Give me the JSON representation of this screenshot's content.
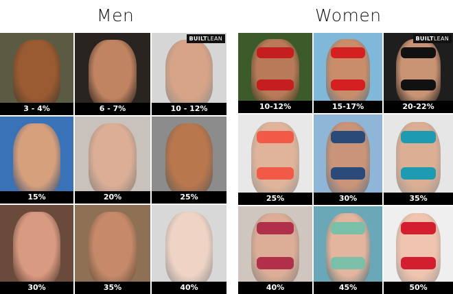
{
  "men": {
    "title": "Men",
    "logo": {
      "bold": "BUILT",
      "light": "LEAN"
    },
    "items": [
      {
        "label": "3 - 4%",
        "bg": "#5a5b42",
        "skin": "#9a5a32"
      },
      {
        "label": "6 - 7%",
        "bg": "#2a2420",
        "skin": "#c08462"
      },
      {
        "label": "10 - 12%",
        "bg": "#d6d6d6",
        "skin": "#d7a488"
      },
      {
        "label": "15%",
        "bg": "#3a72b8",
        "skin": "#d7a07c"
      },
      {
        "label": "20%",
        "bg": "#c9c2bc",
        "skin": "#dcae96"
      },
      {
        "label": "25%",
        "bg": "#8c8c8c",
        "skin": "#b9774d"
      },
      {
        "label": "30%",
        "bg": "#6a4a3a",
        "skin": "#d99a82"
      },
      {
        "label": "35%",
        "bg": "#8e7054",
        "skin": "#c68a6a"
      },
      {
        "label": "40%",
        "bg": "#d8d8d8",
        "skin": "#efd4c6"
      }
    ]
  },
  "women": {
    "title": "Women",
    "logo": {
      "bold": "BUILT",
      "light": "LEAN"
    },
    "items": [
      {
        "label": "10-12%",
        "bg": "#3c5a2a",
        "skin": "#b87a58",
        "suit": "#c41e1e"
      },
      {
        "label": "15-17%",
        "bg": "#7fb8d8",
        "skin": "#c98d6a",
        "suit": "#d42020"
      },
      {
        "label": "20-22%",
        "bg": "#1e1e1e",
        "skin": "#c99474",
        "suit": "#111111"
      },
      {
        "label": "25%",
        "bg": "#e8e8e8",
        "skin": "#e0b49a",
        "suit": "#f05a46"
      },
      {
        "label": "30%",
        "bg": "#8fb6d6",
        "skin": "#c99478",
        "suit": "#2a4a7a"
      },
      {
        "label": "35%",
        "bg": "#e6e6e6",
        "skin": "#dcae94",
        "suit": "#1e9bb0"
      },
      {
        "label": "40%",
        "bg": "#cfc7bf",
        "skin": "#dcae98",
        "suit": "#b0304a"
      },
      {
        "label": "45%",
        "bg": "#6aa8b8",
        "skin": "#e3b59e",
        "suit": "#7ac0a8"
      },
      {
        "label": "50%",
        "bg": "#efefef",
        "skin": "#f0c4ae",
        "suit": "#d21e2e"
      }
    ]
  }
}
